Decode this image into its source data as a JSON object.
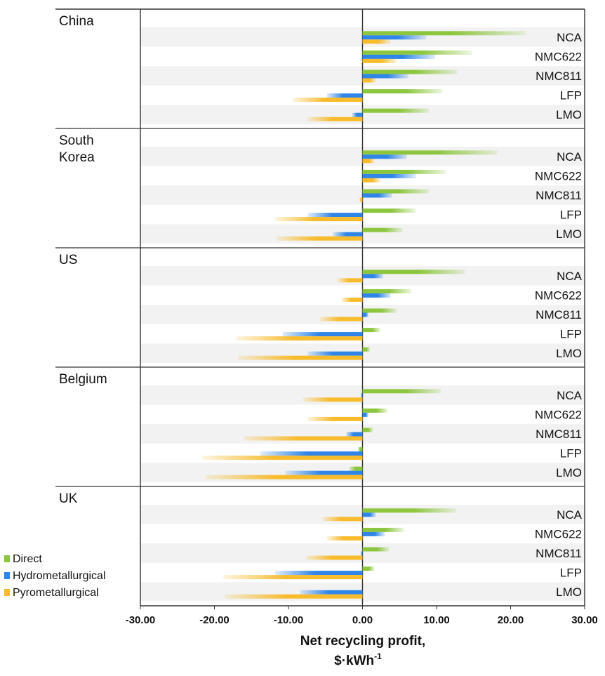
{
  "chart_data": {
    "type": "bar",
    "orientation": "horizontal",
    "xlabel": "Net recycling profit,",
    "xlabel_unit": "$·kWh",
    "xlabel_unit_exp": "-1",
    "xlim": [
      -30,
      30
    ],
    "xticks": [
      "-30.00",
      "-20.00",
      "-10.00",
      "0.00",
      "10.00",
      "20.00",
      "30.00"
    ],
    "xtick_values": [
      -30,
      -20,
      -10,
      0,
      10,
      20,
      30
    ],
    "categories": [
      "NCA",
      "NMC622",
      "NMC811",
      "LFP",
      "LMO"
    ],
    "legend": {
      "position": "bottom-left",
      "entries": [
        "Direct",
        "Hydrometallurgical",
        "Pyrometallurgical"
      ]
    },
    "colors": {
      "Direct": "#8cc63f",
      "Hydrometallurgical": "#2f86e8",
      "Pyrometallurgical": "#f7bb2c",
      "band": "#f2f2f2"
    },
    "regions": [
      {
        "name": "China",
        "series": [
          {
            "name": "Direct",
            "values": [
              22.0,
              14.8,
              12.8,
              10.8,
              9.0
            ]
          },
          {
            "name": "Hydrometallurgical",
            "values": [
              8.6,
              9.8,
              6.2,
              -4.8,
              -1.4
            ]
          },
          {
            "name": "Pyrometallurgical",
            "values": [
              3.8,
              4.6,
              1.8,
              -9.4,
              -7.4
            ]
          }
        ]
      },
      {
        "name": "South\nKorea",
        "series": [
          {
            "name": "Direct",
            "values": [
              18.2,
              11.2,
              9.0,
              7.2,
              5.4
            ]
          },
          {
            "name": "Hydrometallurgical",
            "values": [
              6.0,
              7.2,
              4.0,
              -7.4,
              -4.0
            ]
          },
          {
            "name": "Pyrometallurgical",
            "values": [
              1.6,
              2.4,
              -0.4,
              -11.8,
              -11.6
            ]
          }
        ]
      },
      {
        "name": "US",
        "series": [
          {
            "name": "Direct",
            "values": [
              13.8,
              6.6,
              4.6,
              2.4,
              1.0
            ]
          },
          {
            "name": "Hydrometallurgical",
            "values": [
              2.8,
              3.8,
              0.8,
              -10.8,
              -7.4
            ]
          },
          {
            "name": "Pyrometallurgical",
            "values": [
              -3.4,
              -2.8,
              -5.8,
              -17.0,
              -16.8
            ]
          }
        ]
      },
      {
        "name": "Belgium",
        "series": [
          {
            "name": "Direct",
            "values": [
              10.6,
              3.4,
              1.4,
              -0.6,
              -1.8
            ]
          },
          {
            "name": "Hydrometallurgical",
            "values": [
              -0.2,
              0.8,
              -2.2,
              -13.8,
              -10.4
            ]
          },
          {
            "name": "Pyrometallurgical",
            "values": [
              -8.0,
              -7.4,
              -16.0,
              -21.6,
              -21.2
            ]
          }
        ]
      },
      {
        "name": "UK",
        "series": [
          {
            "name": "Direct",
            "values": [
              12.6,
              5.6,
              3.6,
              1.6,
              0.0
            ]
          },
          {
            "name": "Hydrometallurgical",
            "values": [
              1.8,
              3.0,
              -0.2,
              -11.8,
              -8.4
            ]
          },
          {
            "name": "Pyrometallurgical",
            "values": [
              -5.4,
              -4.8,
              -7.6,
              -18.8,
              -18.6
            ]
          }
        ]
      }
    ]
  }
}
